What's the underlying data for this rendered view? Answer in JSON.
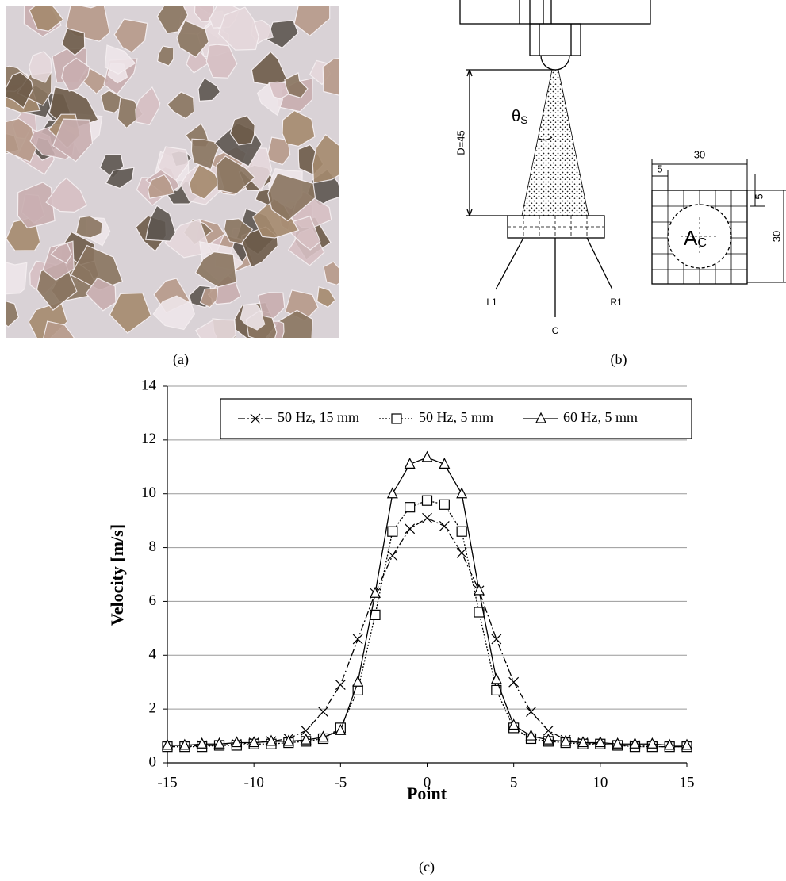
{
  "panels": {
    "a": "(a)",
    "b": "(b)",
    "c": "(c)"
  },
  "diagram": {
    "theta": {
      "base": "θ",
      "sub": "S"
    },
    "distance": "D=45",
    "area": {
      "base": "A",
      "sub": "C"
    },
    "grid_width": "30",
    "cell_width": "5",
    "cell_height": "5",
    "grid_height": "30",
    "points": [
      "L1",
      "C",
      "R1"
    ]
  },
  "chart_data": {
    "type": "line",
    "x_label": "Point",
    "y_label": "Velocity [m/s]",
    "x": [
      -15,
      -14,
      -13,
      -12,
      -11,
      -10,
      -9,
      -8,
      -7,
      -6,
      -5,
      -4,
      -3,
      -2,
      -1,
      0,
      1,
      2,
      3,
      4,
      5,
      6,
      7,
      8,
      9,
      10,
      11,
      12,
      13,
      14,
      15
    ],
    "series": [
      {
        "name": "50 Hz, 15 mm",
        "color": "#000000",
        "dash": "dashdot",
        "marker": "x",
        "values": [
          0.6,
          0.6,
          0.65,
          0.65,
          0.7,
          0.75,
          0.8,
          0.9,
          1.2,
          1.9,
          2.9,
          4.6,
          6.3,
          7.7,
          8.7,
          9.1,
          8.8,
          7.8,
          6.4,
          4.6,
          3.0,
          1.9,
          1.2,
          0.85,
          0.75,
          0.7,
          0.65,
          0.65,
          0.6,
          0.6,
          0.6
        ]
      },
      {
        "name": "50 Hz, 5 mm",
        "color": "#000000",
        "dash": "dotted",
        "marker": "square",
        "values": [
          0.6,
          0.6,
          0.6,
          0.65,
          0.65,
          0.7,
          0.7,
          0.75,
          0.8,
          0.9,
          1.3,
          2.7,
          5.5,
          8.6,
          9.5,
          9.75,
          9.6,
          8.6,
          5.6,
          2.7,
          1.3,
          0.9,
          0.8,
          0.75,
          0.7,
          0.7,
          0.65,
          0.6,
          0.6,
          0.6,
          0.6
        ]
      },
      {
        "name": "60 Hz, 5 mm",
        "color": "#000000",
        "dash": "solid",
        "marker": "triangle",
        "values": [
          0.65,
          0.65,
          0.7,
          0.7,
          0.75,
          0.75,
          0.8,
          0.8,
          0.85,
          0.95,
          1.2,
          3.0,
          6.3,
          10.0,
          11.1,
          11.35,
          11.1,
          10.0,
          6.4,
          3.1,
          1.4,
          1.0,
          0.85,
          0.8,
          0.75,
          0.75,
          0.7,
          0.7,
          0.7,
          0.65,
          0.65
        ]
      }
    ],
    "xlim": [
      -15,
      15
    ],
    "xticks": [
      -15,
      -10,
      -5,
      0,
      5,
      10,
      15
    ],
    "ylim": [
      0,
      14
    ],
    "yticks": [
      0,
      2,
      4,
      6,
      8,
      10,
      12,
      14
    ],
    "grid": true,
    "legend": "top"
  }
}
